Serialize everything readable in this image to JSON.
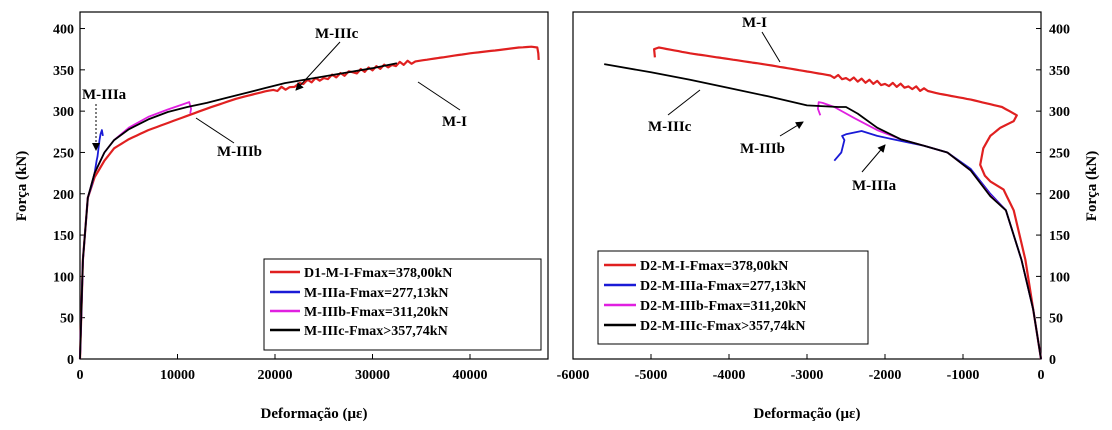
{
  "chart_data": [
    {
      "type": "line",
      "xlabel": "Deformação (με)",
      "ylabel": "Força (kN)",
      "xlim": [
        0,
        48000
      ],
      "ylim": [
        0,
        420
      ],
      "xticks": [
        0,
        10000,
        20000,
        30000,
        40000
      ],
      "yticks": [
        0,
        50,
        100,
        150,
        200,
        250,
        300,
        350,
        400
      ],
      "ytick_side": "left",
      "legend_placement": "bottom-right",
      "grid": false,
      "series": [
        {
          "name": "D1-M-I-Fmax=378,00kN",
          "color": "#e02020",
          "x": [
            0,
            300,
            800,
            1500,
            2500,
            3500,
            5000,
            7000,
            10000,
            13000,
            16000,
            19000,
            21500,
            22500,
            25000,
            28000,
            32000,
            36000,
            40000,
            43000,
            45000,
            46300,
            46900,
            47000,
            47050
          ],
          "y": [
            0,
            120,
            195,
            220,
            240,
            255,
            266,
            277,
            290,
            303,
            315,
            324,
            329,
            334,
            340,
            347,
            356,
            363,
            370,
            374,
            377,
            378,
            377,
            370,
            362
          ],
          "wiggle_x": [
            20000,
            34000
          ]
        },
        {
          "name": "M-IIIa-Fmax=277,13kN",
          "color": "#1a1ad6",
          "x": [
            0,
            300,
            800,
            1200,
            1500,
            1700,
            1800,
            1900,
            2000,
            2100,
            2250,
            2350
          ],
          "y": [
            0,
            120,
            195,
            210,
            225,
            240,
            245,
            255,
            265,
            272,
            277,
            270
          ]
        },
        {
          "name": "M-IIIb-Fmax=311,20kN",
          "color": "#e020e0",
          "x": [
            0,
            300,
            800,
            1500,
            2500,
            3500,
            5000,
            7000,
            9000,
            10500,
            11200,
            11400,
            11300
          ],
          "y": [
            0,
            120,
            195,
            225,
            250,
            265,
            280,
            293,
            302,
            308,
            311,
            303,
            297
          ]
        },
        {
          "name": "M-IIIc-Fmax>357,74kN",
          "color": "#000000",
          "x": [
            0,
            300,
            800,
            1500,
            2500,
            3500,
            5000,
            7000,
            9000,
            11000,
            13000,
            15000,
            17000,
            19000,
            21000,
            24000,
            27000,
            30000,
            32500
          ],
          "y": [
            0,
            120,
            195,
            225,
            250,
            265,
            278,
            290,
            299,
            305,
            310,
            316,
            322,
            328,
            334,
            340,
            346,
            352,
            358
          ]
        }
      ],
      "annotations": [
        "M-IIIc",
        "M-IIIa",
        "M-IIIb",
        "M-I"
      ]
    },
    {
      "type": "line",
      "xlabel": "Deformação (με)",
      "ylabel": "Força (kN)",
      "xlim": [
        -6000,
        0
      ],
      "ylim": [
        0,
        420
      ],
      "xticks": [
        -6000,
        -5000,
        -4000,
        -3000,
        -2000,
        -1000,
        0
      ],
      "yticks": [
        0,
        50,
        100,
        150,
        200,
        250,
        300,
        350,
        400
      ],
      "ytick_side": "right",
      "legend_placement": "bottom-left",
      "grid": false,
      "series": [
        {
          "name": "D2-M-I-Fmax=378,00kN",
          "color": "#e02020",
          "x": [
            0,
            -100,
            -200,
            -350,
            -480,
            -600,
            -650,
            -720,
            -780,
            -740,
            -650,
            -520,
            -350,
            -310,
            -500,
            -900,
            -1300,
            -1700,
            -2000,
            -2500,
            -3000,
            -3500,
            -4000,
            -4500,
            -4900,
            -4960,
            -4950
          ],
          "y": [
            0,
            60,
            120,
            180,
            205,
            212,
            215,
            222,
            235,
            255,
            270,
            280,
            288,
            295,
            305,
            314,
            321,
            330,
            333,
            340,
            348,
            356,
            363,
            370,
            377,
            375,
            365
          ],
          "wiggle_x": [
            -2700,
            -1500
          ]
        },
        {
          "name": "D2-M-IIIa-Fmax=277,13kN",
          "color": "#1a1ad6",
          "x": [
            0,
            -100,
            -250,
            -450,
            -650,
            -900,
            -1200,
            -1500,
            -1800,
            -2100,
            -2300,
            -2500,
            -2550,
            -2520,
            -2560,
            -2650
          ],
          "y": [
            0,
            60,
            120,
            180,
            200,
            230,
            250,
            258,
            264,
            270,
            276,
            272,
            270,
            265,
            250,
            240
          ]
        },
        {
          "name": "D2-M-IIIb-Fmax=311,20kN",
          "color": "#e020e0",
          "x": [
            0,
            -100,
            -250,
            -450,
            -650,
            -900,
            -1200,
            -1500,
            -1800,
            -2100,
            -2400,
            -2650,
            -2800,
            -2850,
            -2860,
            -2830
          ],
          "y": [
            0,
            60,
            120,
            180,
            198,
            228,
            250,
            258,
            266,
            277,
            292,
            305,
            310,
            311,
            303,
            295
          ]
        },
        {
          "name": "D2-M-IIIc-Fmax>357,74kN",
          "color": "#000000",
          "x": [
            0,
            -100,
            -250,
            -450,
            -650,
            -900,
            -1200,
            -1500,
            -1800,
            -2100,
            -2350,
            -2500,
            -2600,
            -3000,
            -3500,
            -4000,
            -4500,
            -5000,
            -5600
          ],
          "y": [
            0,
            60,
            120,
            180,
            197,
            228,
            250,
            258,
            266,
            280,
            297,
            305,
            305,
            307,
            318,
            328,
            338,
            347,
            357
          ]
        }
      ],
      "annotations": [
        "M-I",
        "M-IIIc",
        "M-IIIb",
        "M-IIIa"
      ]
    }
  ]
}
